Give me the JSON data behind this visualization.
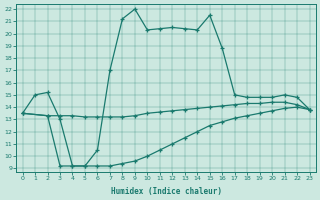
{
  "xlabel": "Humidex (Indice chaleur)",
  "background_color": "#cce8e0",
  "line_color": "#1a7a6e",
  "xlim": [
    -0.5,
    23.5
  ],
  "ylim": [
    8.7,
    22.4
  ],
  "xticks": [
    0,
    1,
    2,
    3,
    4,
    5,
    6,
    7,
    8,
    9,
    10,
    11,
    12,
    13,
    14,
    15,
    16,
    17,
    18,
    19,
    20,
    21,
    22,
    23
  ],
  "yticks": [
    9,
    10,
    11,
    12,
    13,
    14,
    15,
    16,
    17,
    18,
    19,
    20,
    21,
    22
  ],
  "curve1_x": [
    0,
    1,
    2,
    3,
    4,
    5,
    6,
    7,
    8,
    9,
    10,
    11,
    12,
    13,
    14,
    15,
    16,
    17,
    18,
    19,
    20,
    21,
    22,
    23
  ],
  "curve1_y": [
    13.5,
    15.0,
    15.2,
    13.0,
    9.2,
    9.2,
    10.5,
    17.0,
    21.2,
    22.0,
    20.3,
    20.4,
    20.5,
    20.4,
    20.3,
    21.5,
    18.8,
    15.0,
    14.8,
    14.8,
    14.8,
    15.0,
    14.8,
    13.8
  ],
  "curve2_x": [
    0,
    2,
    3,
    4,
    5,
    6,
    7,
    8,
    9,
    10,
    11,
    12,
    13,
    14,
    15,
    16,
    17,
    18,
    19,
    20,
    21,
    22,
    23
  ],
  "curve2_y": [
    13.5,
    13.3,
    13.3,
    13.3,
    13.2,
    13.2,
    13.2,
    13.2,
    13.3,
    13.5,
    13.6,
    13.7,
    13.8,
    13.9,
    14.0,
    14.1,
    14.2,
    14.3,
    14.3,
    14.4,
    14.4,
    14.2,
    13.8
  ],
  "curve3_x": [
    0,
    2,
    3,
    4,
    5,
    6,
    7,
    8,
    9,
    10,
    11,
    12,
    13,
    14,
    15,
    16,
    17,
    18,
    19,
    20,
    21,
    22,
    23
  ],
  "curve3_y": [
    13.5,
    13.3,
    9.2,
    9.2,
    9.2,
    9.2,
    9.2,
    9.4,
    9.6,
    10.0,
    10.5,
    11.0,
    11.5,
    12.0,
    12.5,
    12.8,
    13.1,
    13.3,
    13.5,
    13.7,
    13.9,
    14.0,
    13.8
  ]
}
